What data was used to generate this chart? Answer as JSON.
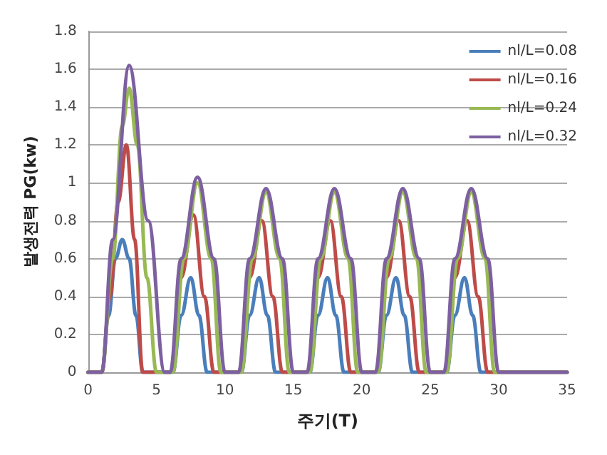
{
  "chart_data": {
    "type": "line",
    "xlabel": "주기(T)",
    "ylabel": "발생전력 PG(kw)",
    "xlim": [
      0,
      35
    ],
    "xticks": [
      0,
      5,
      10,
      15,
      20,
      25,
      30,
      35
    ],
    "ylim": [
      0,
      1.8
    ],
    "yticks": [
      0,
      0.2,
      0.4,
      0.6,
      0.8,
      1,
      1.2,
      1.4,
      1.6,
      1.8
    ],
    "grid": "y",
    "legend": "top right",
    "marker": "none",
    "line_style": "solid",
    "series": [
      {
        "name": "nl/L=0.08",
        "color": "#4a7ebb",
        "x": [
          0,
          1,
          1.5,
          2,
          2.5,
          3,
          3.5,
          4,
          6.2,
          6.8,
          7.5,
          8.1,
          8.7,
          11.2,
          11.8,
          12.5,
          13.1,
          13.7,
          16.2,
          16.8,
          17.5,
          18.1,
          18.7,
          21.2,
          21.8,
          22.5,
          23.1,
          23.7,
          26.2,
          26.8,
          27.5,
          28.1,
          28.7,
          35
        ],
        "values": [
          0,
          0,
          0.3,
          0.6,
          0.7,
          0.6,
          0.3,
          0,
          0,
          0.3,
          0.5,
          0.3,
          0,
          0,
          0.3,
          0.5,
          0.3,
          0,
          0,
          0.3,
          0.5,
          0.3,
          0,
          0,
          0.3,
          0.5,
          0.3,
          0,
          0,
          0.3,
          0.5,
          0.3,
          0,
          0
        ]
      },
      {
        "name": "nl/L=0.16",
        "color": "#be4b48",
        "x": [
          0,
          1,
          1.6,
          2.2,
          2.8,
          3.4,
          4,
          6,
          6.8,
          7.7,
          8.5,
          9.2,
          11,
          11.8,
          12.7,
          13.5,
          14.2,
          16,
          16.8,
          17.7,
          18.5,
          19.2,
          21,
          21.8,
          22.7,
          23.5,
          24.2,
          26,
          26.8,
          27.7,
          28.5,
          29.2,
          35
        ],
        "values": [
          0,
          0,
          0.4,
          0.9,
          1.2,
          0.7,
          0,
          0,
          0.5,
          0.83,
          0.4,
          0,
          0,
          0.5,
          0.8,
          0.4,
          0,
          0,
          0.5,
          0.8,
          0.4,
          0,
          0,
          0.5,
          0.8,
          0.4,
          0,
          0,
          0.5,
          0.8,
          0.4,
          0,
          0
        ]
      },
      {
        "name": "nl/L=0.24",
        "color": "#98b954",
        "x": [
          0,
          1,
          1.8,
          2.5,
          3,
          3.6,
          4.3,
          5,
          6.2,
          7,
          8,
          9,
          9.7,
          11.2,
          12,
          13,
          14,
          14.7,
          16.2,
          17,
          18,
          19,
          19.7,
          21.2,
          22,
          23,
          24,
          24.7,
          26.2,
          27,
          28,
          29,
          29.7,
          35
        ],
        "values": [
          0,
          0,
          0.6,
          1.3,
          1.5,
          1.2,
          0.5,
          0,
          0,
          0.6,
          1,
          0.6,
          0,
          0,
          0.6,
          0.95,
          0.6,
          0,
          0,
          0.6,
          0.95,
          0.6,
          0,
          0,
          0.6,
          0.95,
          0.6,
          0,
          0,
          0.6,
          0.95,
          0.6,
          0,
          0
        ]
      },
      {
        "name": "nl/L=0.32",
        "color": "#7d60a0",
        "x": [
          0,
          1,
          1.8,
          3,
          4.4,
          5.6,
          6,
          6.8,
          8,
          9.2,
          10,
          11,
          11.8,
          13,
          14.2,
          15,
          16,
          16.8,
          18,
          19.2,
          20,
          21,
          21.8,
          23,
          24.2,
          25,
          26,
          26.8,
          28,
          29.2,
          30,
          35
        ],
        "values": [
          0,
          0,
          0.7,
          1.62,
          0.8,
          0,
          0,
          0.6,
          1.03,
          0.6,
          0,
          0,
          0.6,
          0.97,
          0.6,
          0,
          0,
          0.6,
          0.97,
          0.6,
          0,
          0,
          0.6,
          0.97,
          0.6,
          0,
          0,
          0.6,
          0.97,
          0.6,
          0,
          0
        ]
      }
    ]
  }
}
